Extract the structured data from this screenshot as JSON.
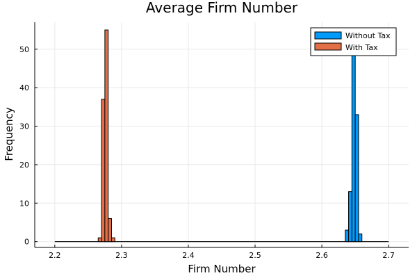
{
  "chart_data": {
    "type": "bar",
    "title": "Average Firm Number",
    "xlabel": "Firm Number",
    "ylabel": "Frequency",
    "xlim": [
      2.17,
      2.73
    ],
    "ylim": [
      -1.5,
      57
    ],
    "xticks": [
      2.2,
      2.3,
      2.4,
      2.5,
      2.6,
      2.7
    ],
    "xtick_labels": [
      "2.2",
      "2.3",
      "2.4",
      "2.5",
      "2.6",
      "2.7"
    ],
    "yticks": [
      0,
      10,
      20,
      30,
      40,
      50
    ],
    "ytick_labels": [
      "0",
      "10",
      "20",
      "30",
      "40",
      "50"
    ],
    "grid": true,
    "legend_position": "top-right",
    "bin_width": 0.005,
    "series": [
      {
        "name": "Without Tax",
        "color": "#009AFA",
        "bins": [
          {
            "start": 2.635,
            "value": 3
          },
          {
            "start": 2.64,
            "value": 13
          },
          {
            "start": 2.645,
            "value": 49
          },
          {
            "start": 2.65,
            "value": 33
          },
          {
            "start": 2.655,
            "value": 2
          }
        ]
      },
      {
        "name": "With Tax",
        "color": "#E36F47",
        "bins": [
          {
            "start": 2.265,
            "value": 1
          },
          {
            "start": 2.27,
            "value": 37
          },
          {
            "start": 2.275,
            "value": 55
          },
          {
            "start": 2.28,
            "value": 6
          },
          {
            "start": 2.285,
            "value": 1
          }
        ]
      }
    ],
    "zero_line": {
      "x_start": 2.2,
      "x_end": 2.7
    }
  }
}
